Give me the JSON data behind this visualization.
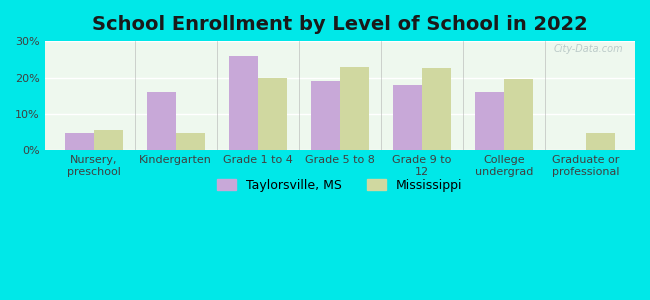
{
  "title": "School Enrollment by Level of School in 2022",
  "categories": [
    "Nursery,\npreschool",
    "Kindergarten",
    "Grade 1 to 4",
    "Grade 5 to 8",
    "Grade 9 to\n12",
    "College\nundergrad",
    "Graduate or\nprofessional"
  ],
  "taylorsville": [
    4.8,
    16.0,
    26.0,
    19.0,
    18.0,
    16.0,
    0.0
  ],
  "mississippi": [
    5.5,
    4.8,
    20.0,
    23.0,
    22.5,
    19.5,
    4.8
  ],
  "taylorsville_color": "#c8a8d8",
  "mississippi_color": "#d0d8a0",
  "background_color": "#00e8e8",
  "plot_bg_color": "#eef8ee",
  "ylim": [
    0,
    30
  ],
  "yticks": [
    0,
    10,
    20,
    30
  ],
  "ytick_labels": [
    "0%",
    "10%",
    "20%",
    "30%"
  ],
  "legend_taylorsville": "Taylorsville, MS",
  "legend_mississippi": "Mississippi",
  "bar_width": 0.35,
  "title_fontsize": 14,
  "tick_fontsize": 8,
  "legend_fontsize": 9
}
